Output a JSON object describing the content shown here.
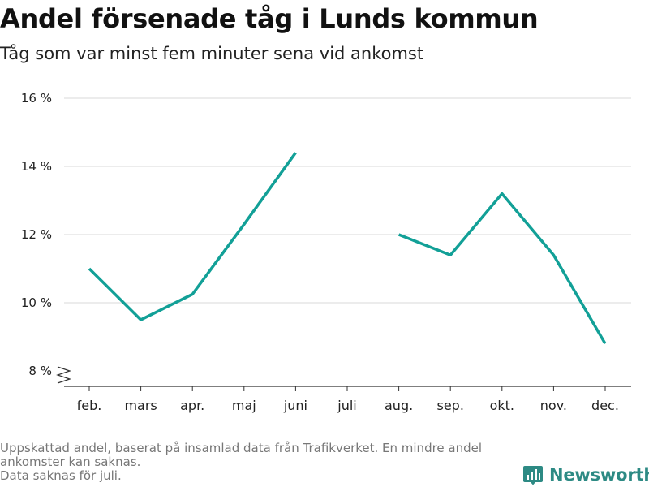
{
  "header": {
    "title": "Andel försenade tåg i Lunds kommun",
    "subtitle": "Tåg som var minst fem minuter sena vid ankomst"
  },
  "chart_data": {
    "type": "line",
    "categories": [
      "feb.",
      "mars",
      "apr.",
      "maj",
      "juni",
      "juli",
      "aug.",
      "sep.",
      "okt.",
      "nov.",
      "dec."
    ],
    "series": [
      {
        "values": [
          11.0,
          9.5,
          10.25,
          12.3,
          14.4,
          null,
          12.0,
          11.4,
          13.2,
          11.4,
          8.8
        ]
      }
    ],
    "yticks": [
      8,
      10,
      12,
      14,
      16
    ],
    "ytick_labels": [
      "8 %",
      "10 %",
      "12 %",
      "14 %",
      "16 %"
    ],
    "ylim": [
      8,
      16
    ],
    "y_axis_break": true,
    "grid": true,
    "line_color": "#12a097"
  },
  "footer": {
    "note_line1": "Uppskattad andel, baserat på insamlad data från Trafikverket. En mindre andel",
    "note_line2": "ankomster kan saknas.",
    "note_line3": "Data saknas för juli."
  },
  "brand": {
    "name": "Newsworthy",
    "color": "#2d8a84",
    "icon": "bar-chart-icon"
  }
}
